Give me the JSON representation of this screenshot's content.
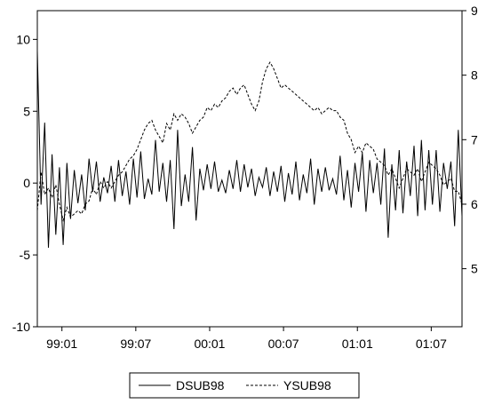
{
  "chart_data": {
    "type": "line",
    "x_ticks": [
      "99:01",
      "99:07",
      "00:01",
      "00:07",
      "01:01",
      "01:07"
    ],
    "x_tick_months": [
      2,
      8,
      14,
      20,
      26,
      32
    ],
    "x_range_months": [
      0,
      34.5
    ],
    "left_axis": {
      "min": -10,
      "max": 12,
      "ticks": [
        10,
        5,
        0,
        -5,
        -10
      ]
    },
    "right_axis": {
      "min": 4.1,
      "max": 9,
      "ticks": [
        5,
        6,
        7,
        8,
        9
      ]
    },
    "series": [
      {
        "name": "DSUB98",
        "axis": "left",
        "style": "solid",
        "x": [
          0.0,
          0.3,
          0.6,
          0.9,
          1.2,
          1.5,
          1.8,
          2.1,
          2.4,
          2.7,
          3.0,
          3.3,
          3.6,
          3.9,
          4.2,
          4.5,
          4.8,
          5.1,
          5.4,
          5.7,
          6.0,
          6.3,
          6.6,
          6.9,
          7.2,
          7.5,
          7.8,
          8.1,
          8.4,
          8.7,
          9.0,
          9.3,
          9.6,
          9.9,
          10.2,
          10.5,
          10.8,
          11.1,
          11.4,
          11.7,
          12.0,
          12.3,
          12.6,
          12.9,
          13.2,
          13.5,
          13.8,
          14.1,
          14.4,
          14.7,
          15.0,
          15.3,
          15.6,
          15.9,
          16.2,
          16.5,
          16.8,
          17.1,
          17.4,
          17.7,
          18.0,
          18.3,
          18.6,
          18.9,
          19.2,
          19.5,
          19.8,
          20.1,
          20.4,
          20.7,
          21.0,
          21.3,
          21.6,
          21.9,
          22.2,
          22.5,
          22.8,
          23.1,
          23.4,
          23.7,
          24.0,
          24.3,
          24.6,
          24.9,
          25.2,
          25.5,
          25.8,
          26.1,
          26.4,
          26.7,
          27.0,
          27.3,
          27.6,
          27.9,
          28.2,
          28.5,
          28.8,
          29.1,
          29.4,
          29.7,
          30.0,
          30.3,
          30.6,
          30.9,
          31.2,
          31.5,
          31.8,
          32.1,
          32.4,
          32.7,
          33.0,
          33.3,
          33.6,
          33.9,
          34.2,
          34.5
        ],
        "y": [
          9.2,
          -1.5,
          4.2,
          -4.5,
          2.0,
          -3.6,
          1.1,
          -4.3,
          1.4,
          -2.5,
          0.9,
          -1.4,
          0.6,
          -1.9,
          1.7,
          -0.6,
          1.5,
          -1.3,
          0.4,
          -0.7,
          1.2,
          -1.3,
          1.6,
          -0.9,
          0.8,
          -1.5,
          1.7,
          -1.0,
          2.2,
          -1.1,
          0.3,
          -0.8,
          3.0,
          -0.6,
          1.4,
          -1.3,
          1.6,
          -3.2,
          3.7,
          -1.6,
          0.6,
          -1.3,
          2.5,
          -2.6,
          1.0,
          -0.5,
          1.3,
          -0.4,
          1.5,
          -0.6,
          0.2,
          -0.7,
          0.9,
          -0.4,
          1.6,
          -0.6,
          1.3,
          -0.3,
          1.0,
          -0.9,
          0.4,
          -0.3,
          1.1,
          -0.9,
          0.8,
          -0.6,
          1.2,
          -1.3,
          0.7,
          -0.8,
          1.5,
          -1.2,
          0.6,
          -0.7,
          1.7,
          -1.5,
          1.0,
          -0.6,
          1.1,
          -0.5,
          0.3,
          -0.8,
          1.9,
          -1.2,
          0.9,
          -1.7,
          1.4,
          -0.6,
          2.1,
          -2.0,
          1.6,
          -0.7,
          1.4,
          -1.5,
          2.4,
          -3.8,
          1.3,
          -1.9,
          2.3,
          -2.1,
          1.5,
          -0.9,
          2.6,
          -2.3,
          3.0,
          -1.9,
          2.3,
          -1.5,
          2.3,
          -2.0,
          1.4,
          -0.4,
          1.5,
          -3.0,
          3.7,
          -2.3
        ]
      },
      {
        "name": "YSUB98",
        "axis": "right",
        "style": "dashed",
        "x": [
          0.0,
          0.3,
          0.6,
          0.9,
          1.2,
          1.5,
          1.8,
          2.1,
          2.4,
          2.7,
          3.0,
          3.3,
          3.6,
          3.9,
          4.2,
          4.5,
          4.8,
          5.1,
          5.4,
          5.7,
          6.0,
          6.3,
          6.6,
          6.9,
          7.2,
          7.5,
          7.8,
          8.1,
          8.4,
          8.7,
          9.0,
          9.3,
          9.6,
          9.9,
          10.2,
          10.5,
          10.8,
          11.1,
          11.4,
          11.7,
          12.0,
          12.3,
          12.6,
          12.9,
          13.2,
          13.5,
          13.8,
          14.1,
          14.4,
          14.7,
          15.0,
          15.3,
          15.6,
          15.9,
          16.2,
          16.5,
          16.8,
          17.1,
          17.4,
          17.7,
          18.0,
          18.3,
          18.6,
          18.9,
          19.2,
          19.5,
          19.8,
          20.1,
          20.4,
          20.7,
          21.0,
          21.3,
          21.6,
          21.9,
          22.2,
          22.5,
          22.8,
          23.1,
          23.4,
          23.7,
          24.0,
          24.3,
          24.6,
          24.9,
          25.2,
          25.5,
          25.8,
          26.1,
          26.4,
          26.7,
          27.0,
          27.3,
          27.6,
          27.9,
          28.2,
          28.5,
          28.8,
          29.1,
          29.4,
          29.7,
          30.0,
          30.3,
          30.6,
          30.9,
          31.2,
          31.5,
          31.8,
          32.1,
          32.4,
          32.7,
          33.0,
          33.3,
          33.6,
          33.9,
          34.2,
          34.5
        ],
        "y": [
          5.9,
          6.5,
          6.15,
          6.25,
          6.1,
          6.3,
          6.0,
          5.75,
          5.95,
          5.8,
          5.85,
          5.9,
          5.85,
          6.0,
          6.05,
          6.25,
          6.15,
          6.35,
          6.25,
          6.35,
          6.25,
          6.35,
          6.45,
          6.5,
          6.6,
          6.7,
          6.75,
          6.85,
          7.0,
          7.15,
          7.25,
          7.3,
          7.15,
          7.05,
          6.95,
          7.25,
          7.15,
          7.4,
          7.3,
          7.4,
          7.35,
          7.25,
          7.1,
          7.2,
          7.3,
          7.35,
          7.5,
          7.45,
          7.55,
          7.5,
          7.6,
          7.65,
          7.75,
          7.8,
          7.7,
          7.8,
          7.85,
          7.7,
          7.55,
          7.45,
          7.6,
          7.9,
          8.1,
          8.2,
          8.1,
          7.95,
          7.8,
          7.85,
          7.8,
          7.75,
          7.7,
          7.65,
          7.6,
          7.55,
          7.5,
          7.45,
          7.5,
          7.4,
          7.45,
          7.5,
          7.45,
          7.45,
          7.35,
          7.3,
          7.1,
          7.0,
          6.8,
          6.9,
          6.8,
          6.95,
          6.9,
          6.85,
          6.7,
          6.65,
          6.6,
          6.45,
          6.55,
          6.4,
          6.25,
          6.4,
          6.55,
          6.5,
          6.45,
          6.55,
          6.35,
          6.5,
          6.65,
          6.6,
          6.55,
          6.45,
          6.3,
          6.35,
          6.4,
          6.2,
          6.2,
          6.0
        ]
      }
    ],
    "legend": {
      "placement": "bottom-center",
      "entries": [
        {
          "label": "DSUB98",
          "style": "solid"
        },
        {
          "label": "YSUB98",
          "style": "dashed"
        }
      ]
    },
    "line_color": "#000000",
    "background": "#ffffff"
  }
}
